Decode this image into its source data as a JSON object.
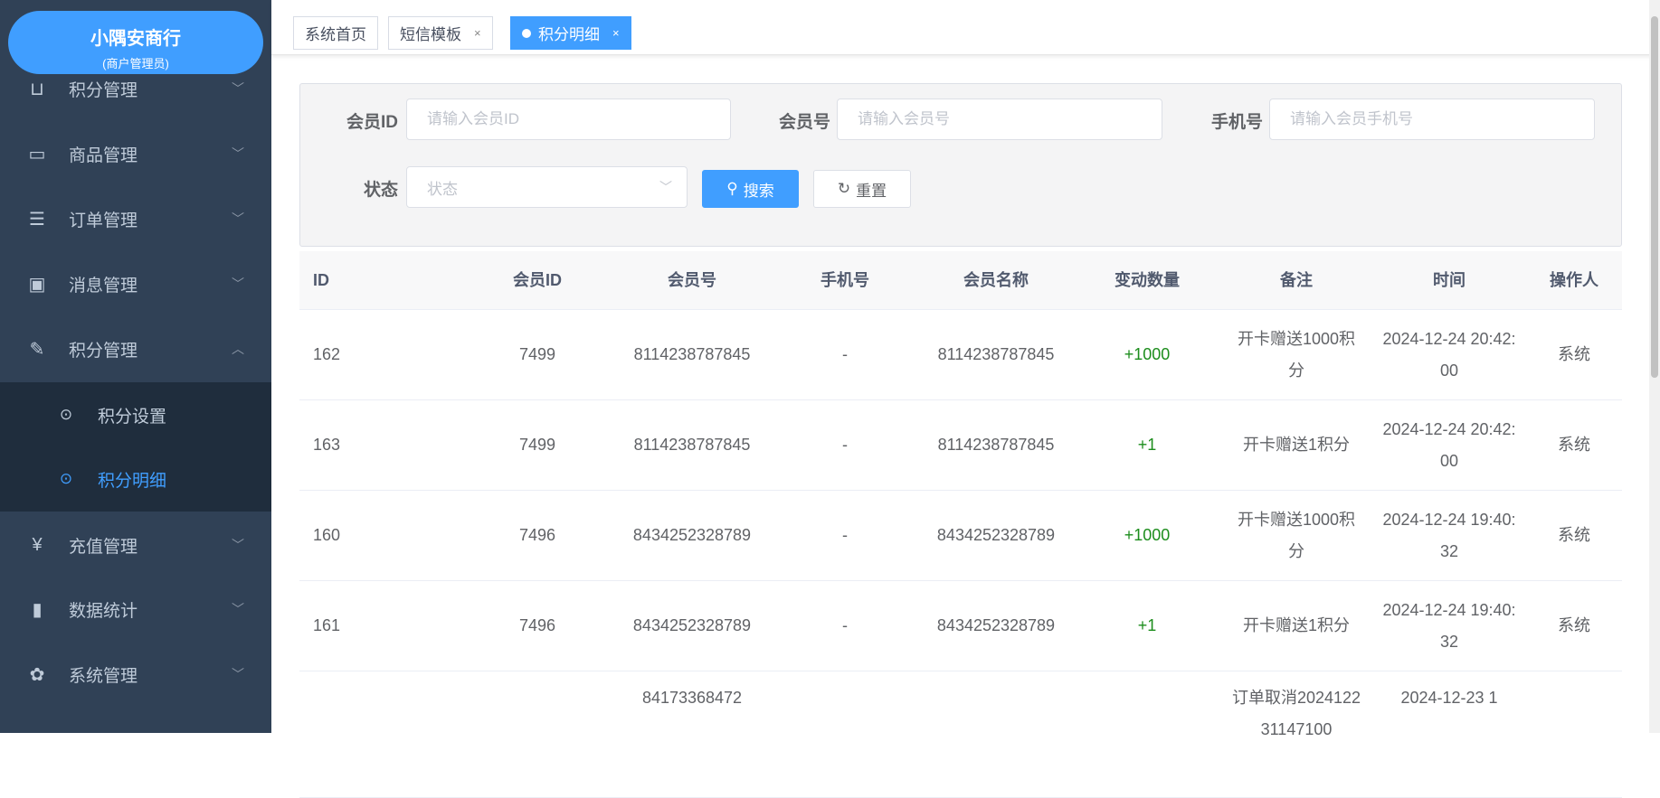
{
  "sidebar": {
    "logo_title": "小隅安商行",
    "logo_subtitle": "(商户管理员)",
    "items": [
      {
        "label": "积分管理",
        "icon": "gift-icon"
      },
      {
        "label": "商品管理",
        "icon": "monitor-icon"
      },
      {
        "label": "订单管理",
        "icon": "list-icon"
      },
      {
        "label": "消息管理",
        "icon": "message-icon"
      },
      {
        "label": "积分管理",
        "icon": "edit-icon"
      },
      {
        "label": "积分设置",
        "icon": "circle-chevron-icon"
      },
      {
        "label": "积分明细",
        "icon": "circle-chevron-icon"
      },
      {
        "label": "充值管理",
        "icon": "yen-icon"
      },
      {
        "label": "数据统计",
        "icon": "bar-chart-icon"
      },
      {
        "label": "系统管理",
        "icon": "gear-icon"
      }
    ]
  },
  "tabs": [
    {
      "label": "系统首页"
    },
    {
      "label": "短信模板",
      "close": "×"
    },
    {
      "label": "积分明细",
      "close": "×"
    }
  ],
  "filter": {
    "member_id_label": "会员ID",
    "member_id_placeholder": "请输入会员ID",
    "member_no_label": "会员号",
    "member_no_placeholder": "请输入会员号",
    "phone_label": "手机号",
    "phone_placeholder": "请输入会员手机号",
    "status_label": "状态",
    "status_placeholder": "状态",
    "search": "搜索",
    "reset": "重置"
  },
  "table": {
    "columns": [
      "ID",
      "会员ID",
      "会员号",
      "手机号",
      "会员名称",
      "变动数量",
      "备注",
      "时间",
      "操作人"
    ],
    "rows": [
      [
        "162",
        "7499",
        "8114238787845",
        "-",
        "8114238787845",
        "+1000",
        "开卡赠送1000积分",
        "2024-12-24 20:42:00",
        "系统"
      ],
      [
        "163",
        "7499",
        "8114238787845",
        "-",
        "8114238787845",
        "+1",
        "开卡赠送1积分",
        "2024-12-24 20:42:00",
        "系统"
      ],
      [
        "160",
        "7496",
        "8434252328789",
        "-",
        "8434252328789",
        "+1000",
        "开卡赠送1000积分",
        "2024-12-24 19:40:32",
        "系统"
      ],
      [
        "161",
        "7496",
        "8434252328789",
        "-",
        "8434252328789",
        "+1",
        "开卡赠送1积分",
        "2024-12-24 19:40:32",
        "系统"
      ],
      [
        "",
        "",
        "84173368472",
        "",
        "",
        "",
        "订单取消202412231147100",
        "2024-12-23 1",
        ""
      ]
    ]
  },
  "colors": {
    "sidebar": "#304156",
    "accent": "#409eff",
    "positive": "#1c8d1c"
  }
}
